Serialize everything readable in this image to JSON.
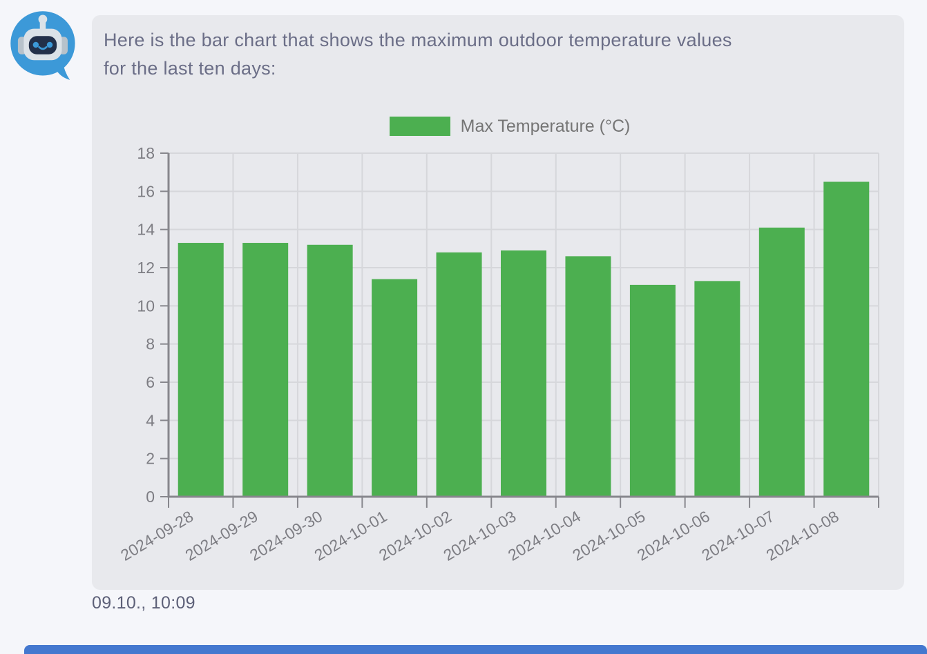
{
  "ui": {
    "colors": {
      "page_bg": "#f5f6fa",
      "bubble_bg": "#e8e9ed",
      "bar_green": "#4caf50",
      "avatar_blue": "#3c99d8",
      "bottom_bar_blue": "#4478cf",
      "chart_text": "#7d7d83",
      "legend_text": "#757575",
      "grid_line": "#d6d7db",
      "axis_line": "#87878d",
      "message_text": "#6b6e87",
      "timestamp_text": "#5d6078"
    },
    "avatar": "robot-chatbot-icon",
    "message": {
      "line1": "Here is the bar chart that shows the maximum outdoor temperature values",
      "line2": "for the last ten days:",
      "timestamp": "09.10., 10:09"
    }
  },
  "chart_data": {
    "type": "bar",
    "title": "",
    "xlabel": "",
    "ylabel": "",
    "categories": [
      "2024-09-28",
      "2024-09-29",
      "2024-09-30",
      "2024-10-01",
      "2024-10-02",
      "2024-10-03",
      "2024-10-04",
      "2024-10-05",
      "2024-10-06",
      "2024-10-07",
      "2024-10-08"
    ],
    "series": [
      {
        "name": "Max Temperature (°C)",
        "values": [
          13.3,
          13.3,
          13.2,
          11.4,
          12.8,
          12.9,
          12.6,
          11.1,
          11.3,
          14.1,
          16.5
        ]
      }
    ],
    "legend": [
      {
        "label": "Max Temperature (°C)",
        "color": "#4caf50"
      }
    ],
    "legend_position": "top",
    "ylim": [
      0,
      18
    ],
    "ytick_step": 2,
    "grid": true,
    "x_label_rotation": -31
  }
}
